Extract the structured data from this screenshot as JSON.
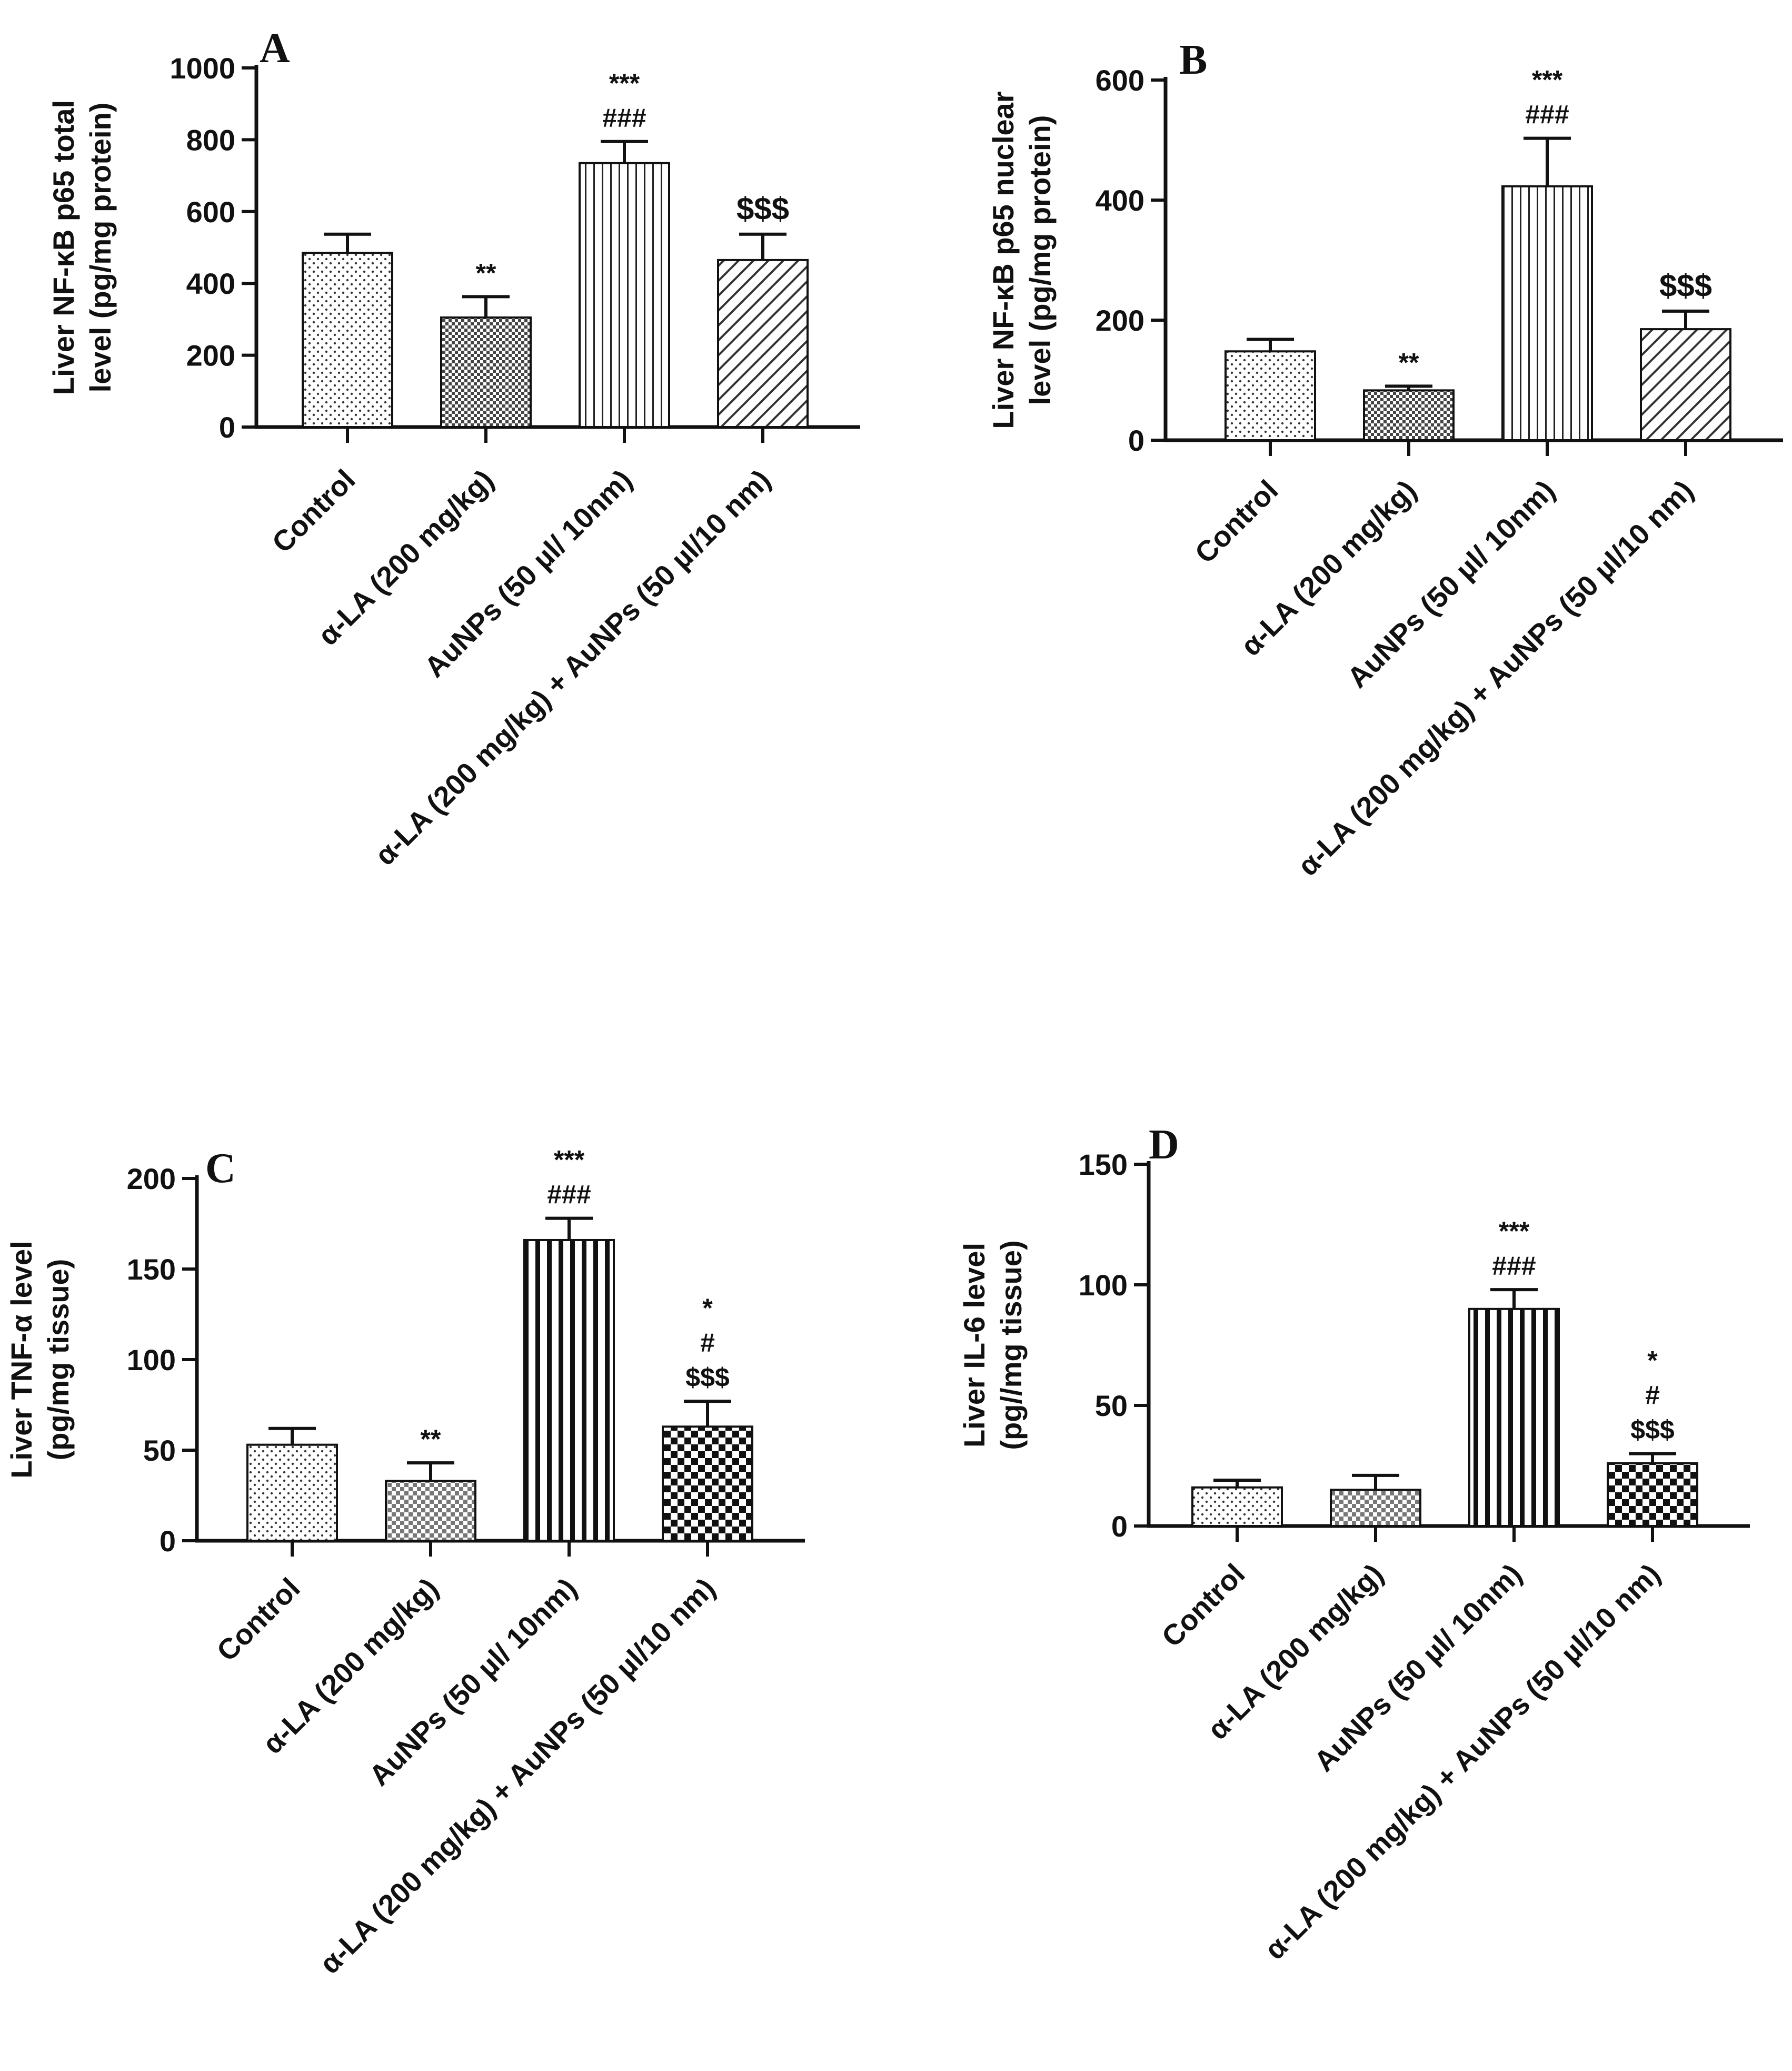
{
  "colors": {
    "ink": "#111111",
    "background": "#ffffff"
  },
  "chart_data": [
    {
      "type": "bar",
      "panel": "A",
      "categories": [
        "Control",
        "α-LA  (200 mg/kg)",
        "AuNPs (50 µl/ 10nm)",
        "α-LA  (200 mg/kg) + AuNPs (50 µl/10 nm)"
      ],
      "values": [
        485,
        305,
        735,
        465
      ],
      "errors": [
        52,
        58,
        60,
        72
      ],
      "significance": [
        [],
        [
          "**"
        ],
        [
          "***",
          "###"
        ],
        [
          "$$$"
        ]
      ],
      "patterns": [
        "dots",
        "checker-dark",
        "vlines",
        "diagonal"
      ],
      "ylabel_lines": [
        "Liver NF-κB p65 total",
        "level (pg/mg protein)"
      ],
      "ylim": [
        0,
        1000
      ],
      "yticks": [
        0,
        200,
        400,
        600,
        800,
        1000
      ],
      "title": "",
      "xlabel": "",
      "grid": false
    },
    {
      "type": "bar",
      "panel": "B",
      "categories": [
        "Control",
        "α-LA  (200 mg/kg)",
        "AuNPs (50 µl/ 10nm)",
        "α-LA  (200 mg/kg) + AuNPs (50 µl/10 nm)"
      ],
      "values": [
        148,
        83,
        423,
        185
      ],
      "errors": [
        20,
        7,
        80,
        30
      ],
      "significance": [
        [],
        [
          "**"
        ],
        [
          "***",
          "###"
        ],
        [
          "$$$"
        ]
      ],
      "patterns": [
        "dots",
        "checker-dark",
        "vlines",
        "diagonal"
      ],
      "ylabel_lines": [
        "Liver NF-κB p65 nuclear",
        "level (pg/mg protein)"
      ],
      "ylim": [
        0,
        600
      ],
      "yticks": [
        0,
        200,
        400,
        600
      ],
      "title": "",
      "xlabel": "",
      "grid": false
    },
    {
      "type": "bar",
      "panel": "C",
      "categories": [
        "Control",
        "α-LA (200 mg/kg)",
        "AuNPs (50 µl/ 10nm)",
        "α-LA (200 mg/kg) + AuNPs (50 µl/10 nm)"
      ],
      "values": [
        53,
        33,
        166,
        63
      ],
      "errors": [
        9,
        10,
        12,
        14
      ],
      "significance": [
        [],
        [
          "**"
        ],
        [
          "***",
          "###"
        ],
        [
          "*",
          "#",
          "$$$"
        ]
      ],
      "patterns": [
        "dots",
        "checker-light",
        "vbars-bold",
        "checker-bold"
      ],
      "ylabel_lines": [
        "Liver TNF-α level",
        "(pg/mg tissue)"
      ],
      "ylim": [
        0,
        200
      ],
      "yticks": [
        0,
        50,
        100,
        150,
        200
      ],
      "title": "",
      "xlabel": "",
      "grid": false
    },
    {
      "type": "bar",
      "panel": "D",
      "categories": [
        "Control",
        "α-LA (200 mg/kg)",
        "AuNPs (50 µl/ 10nm)",
        "α-LA (200 mg/kg) + AuNPs (50 µl/10 nm)"
      ],
      "values": [
        16,
        15,
        90,
        26
      ],
      "errors": [
        3,
        6,
        8,
        4
      ],
      "significance": [
        [],
        [],
        [
          "***",
          "###"
        ],
        [
          "*",
          "#",
          "$$$"
        ]
      ],
      "patterns": [
        "dots",
        "checker-light",
        "vbars-bold",
        "checker-bold"
      ],
      "ylabel_lines": [
        "Liver IL-6 level",
        "(pg//mg tissue)"
      ],
      "ylim": [
        0,
        150
      ],
      "yticks": [
        0,
        50,
        100,
        150
      ],
      "title": "",
      "xlabel": "",
      "grid": false
    }
  ]
}
